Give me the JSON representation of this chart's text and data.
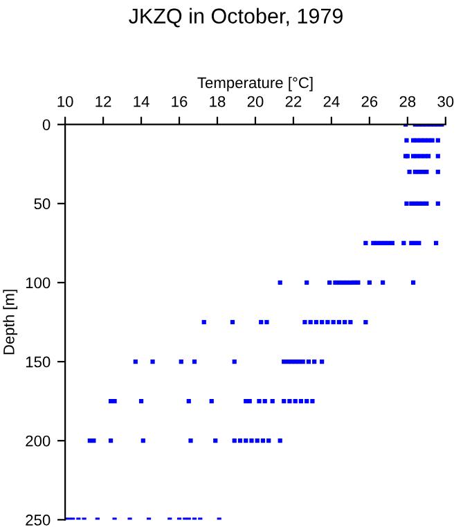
{
  "chart_data": {
    "type": "scatter",
    "title": "JKZQ in October, 1979",
    "xlabel": "Temperature [°C]",
    "ylabel": "Depth [m]",
    "xlim": [
      10,
      30
    ],
    "xticks": [
      10,
      12,
      14,
      16,
      18,
      20,
      22,
      24,
      26,
      28,
      30
    ],
    "ylim": [
      250,
      0
    ],
    "yticks": [
      0,
      50,
      100,
      150,
      200,
      250
    ],
    "grid": false,
    "legend": false,
    "marker": "square",
    "series": [
      {
        "color": "#0000ff",
        "x": [
          27.9,
          28.4,
          28.6,
          28.8,
          29.0,
          29.2,
          29.4,
          29.6,
          29.8,
          27.95,
          28.3,
          28.5,
          28.7,
          28.9,
          29.1,
          29.3,
          29.6,
          27.9,
          28.0,
          28.3,
          28.5,
          28.7,
          28.9,
          29.1,
          29.6,
          28.1,
          28.4,
          28.6,
          28.8,
          29.0,
          29.6,
          27.95,
          28.2,
          28.4,
          28.6,
          28.8,
          29.0,
          29.6,
          25.8,
          26.2,
          26.4,
          26.6,
          26.8,
          27.0,
          27.2,
          27.8,
          28.2,
          28.4,
          28.6,
          29.5,
          21.3,
          22.7,
          23.9,
          24.2,
          24.4,
          24.6,
          24.8,
          25.0,
          25.2,
          25.4,
          26.0,
          26.7,
          28.3,
          17.3,
          18.8,
          20.3,
          20.6,
          22.6,
          22.9,
          23.2,
          23.5,
          23.8,
          24.1,
          24.4,
          24.7,
          25.0,
          25.8,
          13.7,
          14.6,
          16.1,
          16.8,
          18.9,
          21.5,
          21.7,
          21.9,
          22.1,
          22.3,
          22.5,
          22.8,
          23.1,
          23.5,
          12.4,
          12.6,
          14.0,
          16.5,
          17.7,
          19.5,
          19.7,
          20.2,
          20.5,
          20.9,
          21.5,
          21.8,
          22.1,
          22.4,
          22.7,
          23.0,
          11.3,
          11.5,
          12.4,
          14.1,
          16.6,
          17.9,
          18.9,
          19.2,
          19.5,
          19.8,
          20.1,
          20.4,
          20.7,
          21.3,
          10.0,
          10.2,
          10.4,
          10.7,
          11.0,
          11.7,
          12.6,
          13.4,
          14.4,
          15.5,
          16.0,
          16.3,
          16.5,
          16.8,
          17.1,
          18.1
        ],
        "values": [
          0,
          0,
          0,
          0,
          0,
          0,
          0,
          0,
          0,
          10,
          10,
          10,
          10,
          10,
          10,
          10,
          10,
          20,
          20,
          20,
          20,
          20,
          20,
          20,
          20,
          30,
          30,
          30,
          30,
          30,
          30,
          50,
          50,
          50,
          50,
          50,
          50,
          50,
          75,
          75,
          75,
          75,
          75,
          75,
          75,
          75,
          75,
          75,
          75,
          75,
          100,
          100,
          100,
          100,
          100,
          100,
          100,
          100,
          100,
          100,
          100,
          100,
          100,
          125,
          125,
          125,
          125,
          125,
          125,
          125,
          125,
          125,
          125,
          125,
          125,
          125,
          125,
          150,
          150,
          150,
          150,
          150,
          150,
          150,
          150,
          150,
          150,
          150,
          150,
          150,
          150,
          175,
          175,
          175,
          175,
          175,
          175,
          175,
          175,
          175,
          175,
          175,
          175,
          175,
          175,
          175,
          175,
          200,
          200,
          200,
          200,
          200,
          200,
          200,
          200,
          200,
          200,
          200,
          200,
          200,
          200,
          250,
          250,
          250,
          250,
          250,
          250,
          250,
          250,
          250,
          250,
          250,
          250,
          250,
          250,
          250,
          250
        ]
      }
    ]
  }
}
